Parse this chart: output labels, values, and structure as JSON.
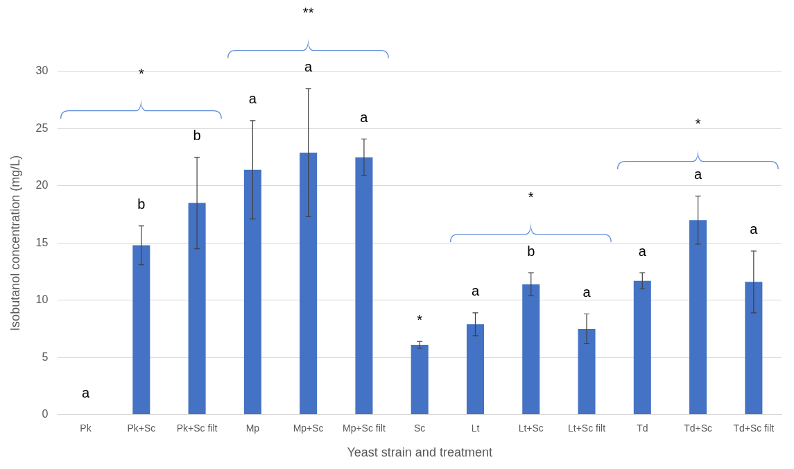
{
  "chart_data": {
    "type": "bar",
    "xlabel": "Yeast strain and treatment",
    "ylabel": "Isobutanol concentration (mg/L)",
    "categories": [
      "Pk",
      "Pk+Sc",
      "Pk+Sc filt",
      "Mp",
      "Mp+Sc",
      "Mp+Sc filt",
      "Sc",
      "Lt",
      "Lt+Sc",
      "Lt+Sc filt",
      "Td",
      "Td+Sc",
      "Td+Sc filt"
    ],
    "values": [
      0,
      14.8,
      18.5,
      21.4,
      22.9,
      22.5,
      6.1,
      7.9,
      11.4,
      7.5,
      11.7,
      17.0,
      11.6
    ],
    "errors": [
      null,
      1.7,
      4.0,
      4.3,
      5.6,
      1.6,
      0.3,
      1.0,
      1.0,
      1.3,
      0.7,
      2.1,
      2.7
    ],
    "color": "#4472c4",
    "ylim": [
      0,
      30
    ],
    "yticks": [
      0,
      5,
      10,
      15,
      20,
      25,
      30
    ],
    "grid": "y",
    "legend": false,
    "annotations": [
      "a",
      "b",
      "b",
      "a",
      "a",
      "a",
      "*",
      "a",
      "b",
      "a",
      "a",
      "a",
      "a",
      "*",
      "**",
      "*",
      "*"
    ]
  }
}
